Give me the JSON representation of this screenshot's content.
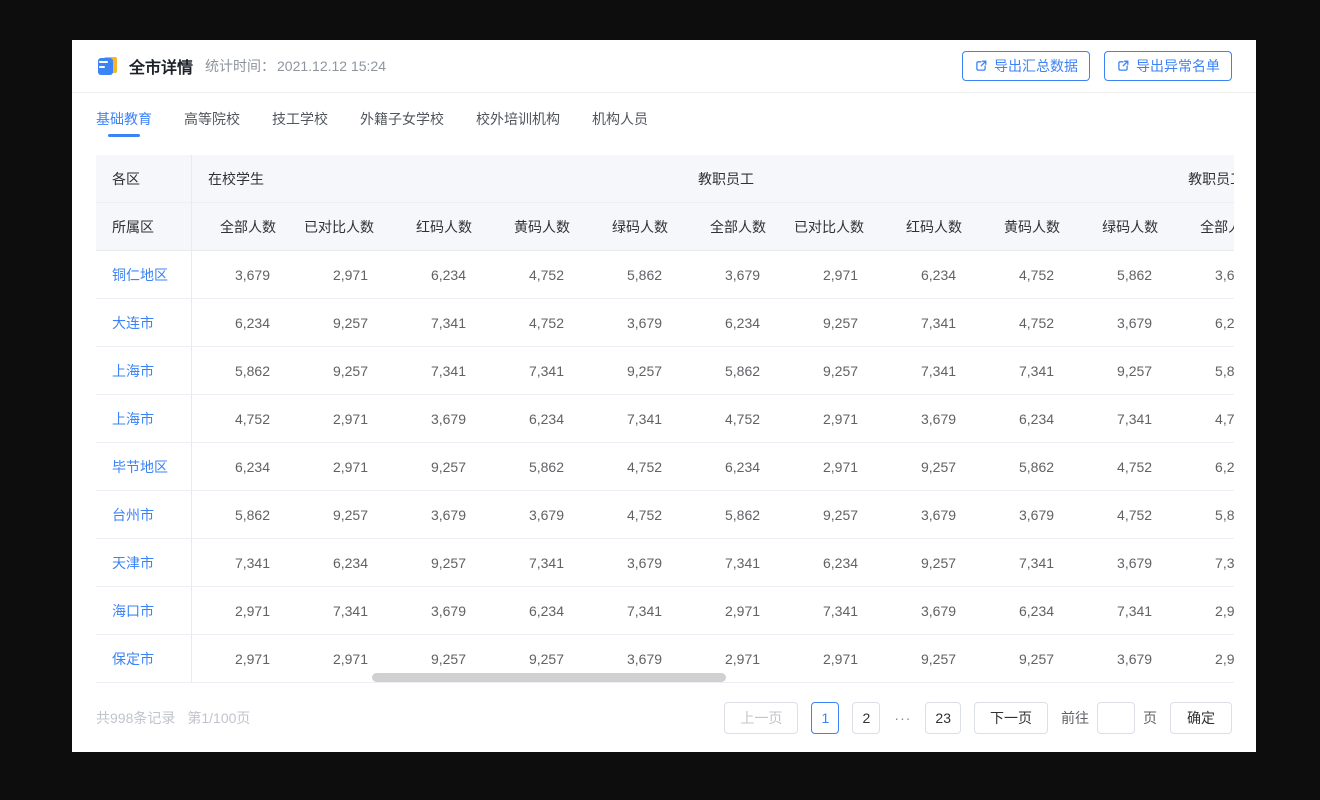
{
  "app": {
    "background_color": "#0d0d0d",
    "accent_blue": "#3c83f6"
  },
  "header": {
    "title": "全市详情",
    "stat_time_label": "统计时间：",
    "stat_time_value": "2021.12.12  15:24",
    "export_summary_label": "导出汇总数据",
    "export_abnormal_label": "导出异常名单",
    "doc_icon": "document-icon",
    "export_icon": "external-link-icon"
  },
  "tabs": {
    "active_index": 0,
    "items": [
      "基础教育",
      "高等院校",
      "技工学校",
      "外籍子女学校",
      "校外培训机构",
      "机构人员"
    ]
  },
  "table": {
    "corner_group_label": "各区",
    "corner_sub_label": "所属区",
    "groups": [
      "在校学生",
      "教职员工",
      "教职员工"
    ],
    "sub_columns": [
      "全部人数",
      "已对比人数",
      "红码人数",
      "黄码人数",
      "绿码人数"
    ],
    "rows": [
      {
        "region": "铜仁地区",
        "values": [
          "3,679",
          "2,971",
          "6,234",
          "4,752",
          "5,862"
        ]
      },
      {
        "region": "大连市",
        "values": [
          "6,234",
          "9,257",
          "7,341",
          "4,752",
          "3,679"
        ]
      },
      {
        "region": "上海市",
        "values": [
          "5,862",
          "9,257",
          "7,341",
          "7,341",
          "9,257"
        ]
      },
      {
        "region": "上海市",
        "values": [
          "4,752",
          "2,971",
          "3,679",
          "6,234",
          "7,341"
        ]
      },
      {
        "region": "毕节地区",
        "values": [
          "6,234",
          "2,971",
          "9,257",
          "5,862",
          "4,752"
        ]
      },
      {
        "region": "台州市",
        "values": [
          "5,862",
          "9,257",
          "3,679",
          "3,679",
          "4,752"
        ]
      },
      {
        "region": "天津市",
        "values": [
          "7,341",
          "6,234",
          "9,257",
          "7,341",
          "3,679"
        ]
      },
      {
        "region": "海口市",
        "values": [
          "2,971",
          "7,341",
          "3,679",
          "6,234",
          "7,341"
        ]
      },
      {
        "region": "保定市",
        "values": [
          "2,971",
          "2,971",
          "9,257",
          "9,257",
          "3,679"
        ]
      }
    ],
    "note_values_repeat_for_each_group": true
  },
  "footer": {
    "records_total": "共998条记录",
    "page_indicator": "第1/100页",
    "pagination": [
      {
        "label": "上一页",
        "type": "prev",
        "disabled": true
      },
      {
        "label": "1",
        "type": "page",
        "active": true
      },
      {
        "label": "2",
        "type": "page",
        "active": false
      },
      {
        "label": "···",
        "type": "dots"
      },
      {
        "label": "23",
        "type": "page",
        "active": false
      },
      {
        "label": "下一页",
        "type": "next",
        "disabled": false
      }
    ],
    "goto": {
      "label": "前往",
      "input_value": "",
      "unit": "页",
      "confirm": "确定"
    }
  }
}
